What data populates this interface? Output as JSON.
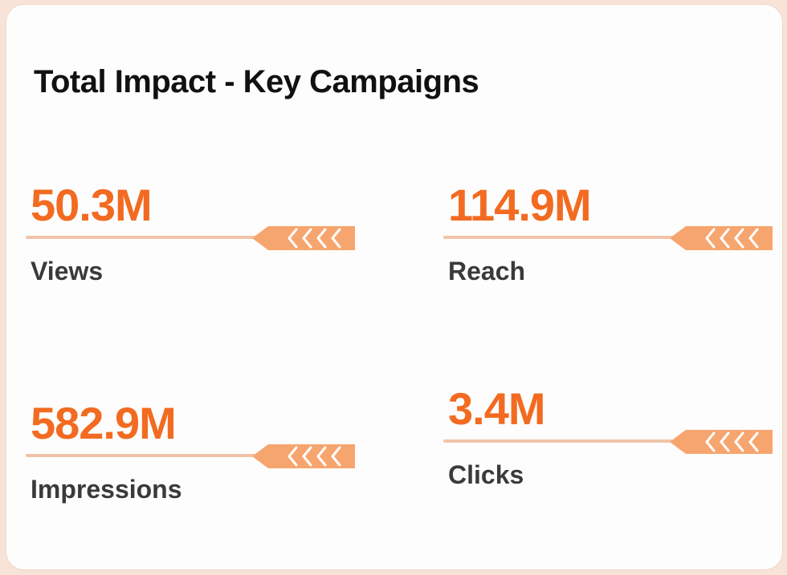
{
  "card": {
    "title": "Total Impact - Key Campaigns"
  },
  "colors": {
    "accent": "#f26b21",
    "accent_light": "#f7a56f",
    "line": "#f0c4aa",
    "label": "#3a3a3a",
    "title": "#111111"
  },
  "metrics": [
    {
      "value": "50.3M",
      "label": "Views",
      "icon": "arrow-left-icon"
    },
    {
      "value": "114.9M",
      "label": "Reach",
      "icon": "arrow-left-icon"
    },
    {
      "value": "582.9M",
      "label": "Impressions",
      "icon": "arrow-left-icon"
    },
    {
      "value": "3.4M",
      "label": "Clicks",
      "icon": "arrow-left-icon"
    }
  ]
}
